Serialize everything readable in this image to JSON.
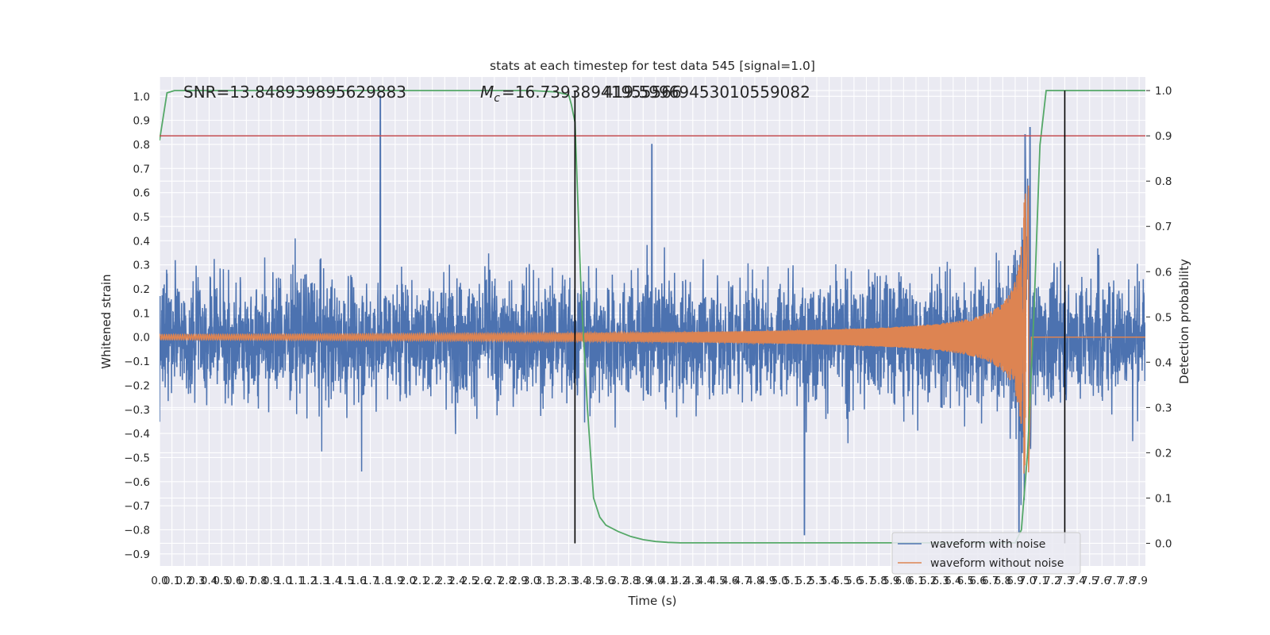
{
  "chart_data": {
    "type": "line",
    "title": "stats at each timestep for test data 545 [signal=1.0]",
    "xlabel": "Time (s)",
    "ylabel": "Whitened strain",
    "y2label": "Detection probability",
    "xlim": [
      0.0,
      7.95
    ],
    "ylim": [
      -0.95,
      1.08
    ],
    "y2lim": [
      -0.05,
      1.03
    ],
    "grid": true,
    "legend_position": "bottom-right",
    "x_ticks": [
      0.0,
      0.1,
      0.2,
      0.3,
      0.4,
      0.5,
      0.6,
      0.7,
      0.8,
      0.9,
      1.0,
      1.1,
      1.2,
      1.3,
      1.4,
      1.5,
      1.6,
      1.7,
      1.8,
      1.9,
      2.0,
      2.1,
      2.2,
      2.3,
      2.4,
      2.5,
      2.6,
      2.7,
      2.8,
      2.9,
      3.0,
      3.1,
      3.2,
      3.3,
      3.4,
      3.5,
      3.6,
      3.7,
      3.8,
      3.9,
      4.0,
      4.1,
      4.2,
      4.3,
      4.4,
      4.5,
      4.6,
      4.7,
      4.8,
      4.9,
      5.0,
      5.1,
      5.2,
      5.3,
      5.4,
      5.5,
      5.6,
      5.7,
      5.8,
      5.9,
      6.0,
      6.1,
      6.2,
      6.3,
      6.4,
      6.5,
      6.6,
      6.7,
      6.8,
      6.9,
      7.0,
      7.1,
      7.2,
      7.3,
      7.4,
      7.5,
      7.6,
      7.7,
      7.8,
      7.9
    ],
    "y_ticks": [
      -0.9,
      -0.8,
      -0.7,
      -0.6,
      -0.5,
      -0.4,
      -0.3,
      -0.2,
      -0.1,
      0.0,
      0.1,
      0.2,
      0.3,
      0.4,
      0.5,
      0.6,
      0.7,
      0.8,
      0.9,
      1.0
    ],
    "y2_ticks": [
      0.0,
      0.1,
      0.2,
      0.3,
      0.4,
      0.5,
      0.6,
      0.7,
      0.8,
      0.9,
      1.0
    ],
    "annotations": {
      "snr": "SNR=13.848939895629883",
      "mc": "=16.73938941955566",
      "mc_symbol": "M",
      "mc_sub": "c",
      "overlap": "419.59969453010559082"
    },
    "series": [
      {
        "name": "waveform with noise",
        "color": "#4c72b0",
        "description_values": {
          "approx_range": [
            -0.83,
            1.0
          ],
          "spikes": [
            [
              1.78,
              1.0
            ],
            [
              6.98,
              0.84
            ],
            [
              7.02,
              0.87
            ],
            [
              3.97,
              0.8
            ],
            [
              6.93,
              -0.81
            ],
            [
              5.2,
              -0.82
            ]
          ]
        }
      },
      {
        "name": "waveform without noise",
        "color": "#dd8452",
        "description_values": {
          "chirp_peak_time": 7.0,
          "chirp_max": 0.65,
          "chirp_min": -0.57,
          "merger_end": 7.03
        }
      },
      {
        "name": "",
        "color": "#55a868",
        "axis": "right",
        "x": [
          0.0,
          0.06,
          0.12,
          0.2,
          0.4,
          1.0,
          2.0,
          3.0,
          3.2,
          3.3,
          3.32,
          3.35,
          3.4,
          3.45,
          3.5,
          3.55,
          3.6,
          3.7,
          3.8,
          3.9,
          4.0,
          4.1,
          4.2,
          4.3,
          4.5,
          5.0,
          6.0,
          6.9,
          6.95,
          7.0,
          7.05,
          7.1,
          7.15,
          7.2,
          7.3,
          7.5,
          7.95
        ],
        "y": [
          0.89,
          0.995,
          1.0,
          1.0,
          1.0,
          1.0,
          1.0,
          1.0,
          0.997,
          0.99,
          0.97,
          0.93,
          0.55,
          0.3,
          0.1,
          0.058,
          0.04,
          0.026,
          0.015,
          0.008,
          0.004,
          0.002,
          0.001,
          0.001,
          0.001,
          0.001,
          0.001,
          0.001,
          0.03,
          0.2,
          0.5,
          0.88,
          1.0,
          1.0,
          1.0,
          1.0,
          1.0
        ]
      },
      {
        "name": "",
        "color": "#c44e52",
        "axis": "right",
        "type": "hline",
        "y": 0.9
      }
    ],
    "vlines": [
      3.35,
      7.3
    ]
  }
}
